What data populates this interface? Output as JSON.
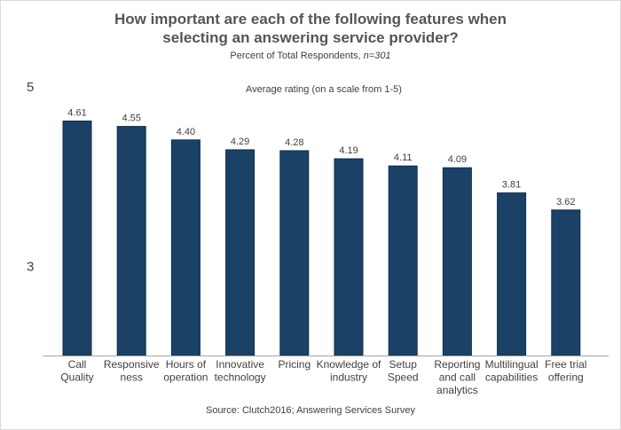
{
  "chart_data": {
    "type": "bar",
    "title_line1": "How important are each of the following features when",
    "title_line2": "selecting an answering service provider?",
    "subtitle_prefix": "Percent of Total Respondents, ",
    "subtitle_n": "n=301",
    "annotation": "Average rating (on a scale from 1-5)",
    "source": "Source: Clutch2016; Answering Services Survey",
    "categories": [
      [
        "Call",
        "Quality"
      ],
      [
        "Responsive",
        "ness"
      ],
      [
        "Hours of",
        "operation"
      ],
      [
        "Innovative",
        "technology"
      ],
      [
        "Pricing"
      ],
      [
        "Knowledge of",
        "industry"
      ],
      [
        "Setup",
        "Speed"
      ],
      [
        "Reporting",
        "and call",
        "analytics"
      ],
      [
        "Multilingual",
        "capabilities"
      ],
      [
        "Free trial",
        "offering"
      ]
    ],
    "values": [
      4.61,
      4.55,
      4.4,
      4.29,
      4.28,
      4.19,
      4.11,
      4.09,
      3.81,
      3.62
    ],
    "value_labels": [
      "4.61",
      "4.55",
      "4.40",
      "4.29",
      "4.28",
      "4.19",
      "4.11",
      "4.09",
      "3.81",
      "3.62"
    ],
    "yticks": [
      "5",
      "3"
    ],
    "ylim": [
      2,
      5
    ],
    "bar_color": "#1b4266",
    "grid": false
  }
}
